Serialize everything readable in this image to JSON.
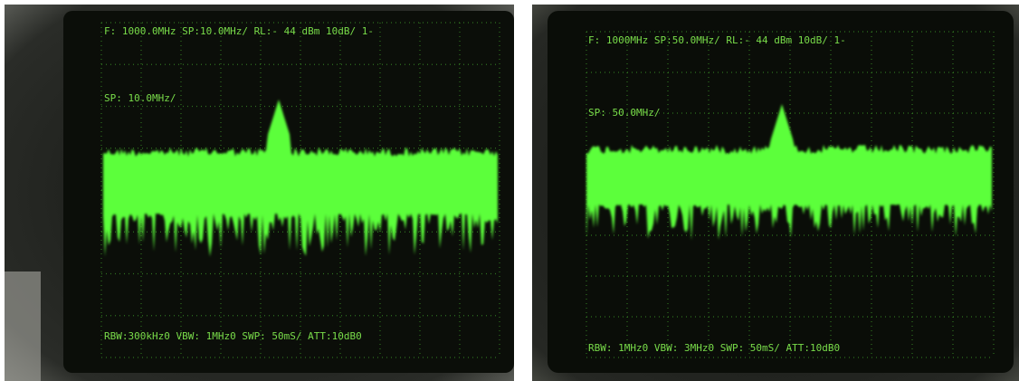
{
  "screens": [
    {
      "header": "F:  1000.0MHz SP:10.0MHz/ RL:-  44 dBm 10dB/  1-",
      "span_label": "SP:  10.0MHz/",
      "footer": "RBW:300kHz0  VBW:  1MHz0  SWP: 50mS/   ATT:10dB0"
    },
    {
      "header": "F:  1000MHz SP:50.0MHz/ RL:-  44 dBm 10dB/  1-",
      "span_label": "SP:  50.0MHz/",
      "footer": "RBW:  1MHz0  VBW:  3MHz0  SWP: 50mS/  ATT:10dB0"
    }
  ]
}
